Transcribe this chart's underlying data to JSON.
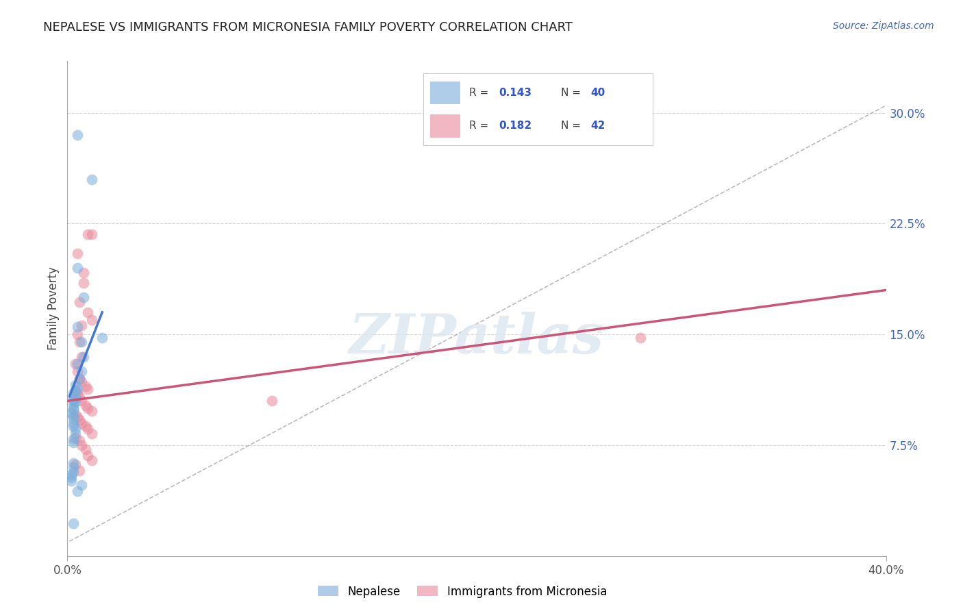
{
  "title": "NEPALESE VS IMMIGRANTS FROM MICRONESIA FAMILY POVERTY CORRELATION CHART",
  "source": "Source: ZipAtlas.com",
  "ylabel": "Family Poverty",
  "xlim": [
    0.0,
    0.4
  ],
  "ylim": [
    0.0,
    0.335
  ],
  "ytick_positions": [
    0.075,
    0.15,
    0.225,
    0.3
  ],
  "ytick_labels": [
    "7.5%",
    "15.0%",
    "22.5%",
    "30.0%"
  ],
  "grid_color": "#cccccc",
  "background_color": "#ffffff",
  "blue_color": "#7aaddb",
  "pink_color": "#e8889a",
  "watermark": "ZIPatlas",
  "nepalese_x": [
    0.005,
    0.012,
    0.005,
    0.008,
    0.005,
    0.007,
    0.008,
    0.005,
    0.007,
    0.006,
    0.004,
    0.005,
    0.004,
    0.003,
    0.004,
    0.003,
    0.003,
    0.004,
    0.003,
    0.003,
    0.003,
    0.002,
    0.003,
    0.003,
    0.003,
    0.003,
    0.004,
    0.004,
    0.003,
    0.003,
    0.017,
    0.003,
    0.003,
    0.003,
    0.002,
    0.002,
    0.002,
    0.007,
    0.005,
    0.003
  ],
  "nepalese_y": [
    0.285,
    0.255,
    0.195,
    0.175,
    0.155,
    0.145,
    0.135,
    0.13,
    0.125,
    0.12,
    0.116,
    0.113,
    0.112,
    0.11,
    0.108,
    0.106,
    0.105,
    0.104,
    0.103,
    0.1,
    0.099,
    0.097,
    0.095,
    0.093,
    0.09,
    0.088,
    0.086,
    0.083,
    0.079,
    0.077,
    0.148,
    0.063,
    0.06,
    0.057,
    0.055,
    0.053,
    0.051,
    0.048,
    0.044,
    0.022
  ],
  "micronesia_x": [
    0.01,
    0.012,
    0.005,
    0.008,
    0.008,
    0.006,
    0.01,
    0.012,
    0.007,
    0.005,
    0.006,
    0.007,
    0.004,
    0.005,
    0.006,
    0.007,
    0.009,
    0.01,
    0.004,
    0.005,
    0.006,
    0.007,
    0.009,
    0.01,
    0.012,
    0.004,
    0.005,
    0.006,
    0.007,
    0.009,
    0.01,
    0.012,
    0.004,
    0.006,
    0.1,
    0.28,
    0.007,
    0.009,
    0.01,
    0.012,
    0.004,
    0.006
  ],
  "micronesia_y": [
    0.218,
    0.218,
    0.205,
    0.192,
    0.185,
    0.172,
    0.165,
    0.16,
    0.156,
    0.15,
    0.145,
    0.135,
    0.13,
    0.125,
    0.12,
    0.118,
    0.115,
    0.113,
    0.112,
    0.11,
    0.108,
    0.105,
    0.102,
    0.1,
    0.098,
    0.096,
    0.094,
    0.092,
    0.09,
    0.088,
    0.086,
    0.083,
    0.08,
    0.078,
    0.105,
    0.148,
    0.075,
    0.072,
    0.068,
    0.065,
    0.062,
    0.058
  ],
  "blue_line_x": [
    0.001,
    0.017
  ],
  "blue_line_y": [
    0.108,
    0.165
  ],
  "dashed_line_x": [
    0.001,
    0.4
  ],
  "dashed_line_y": [
    0.01,
    0.305
  ],
  "pink_line_x": [
    0.0,
    0.4
  ],
  "pink_line_y": [
    0.105,
    0.18
  ]
}
